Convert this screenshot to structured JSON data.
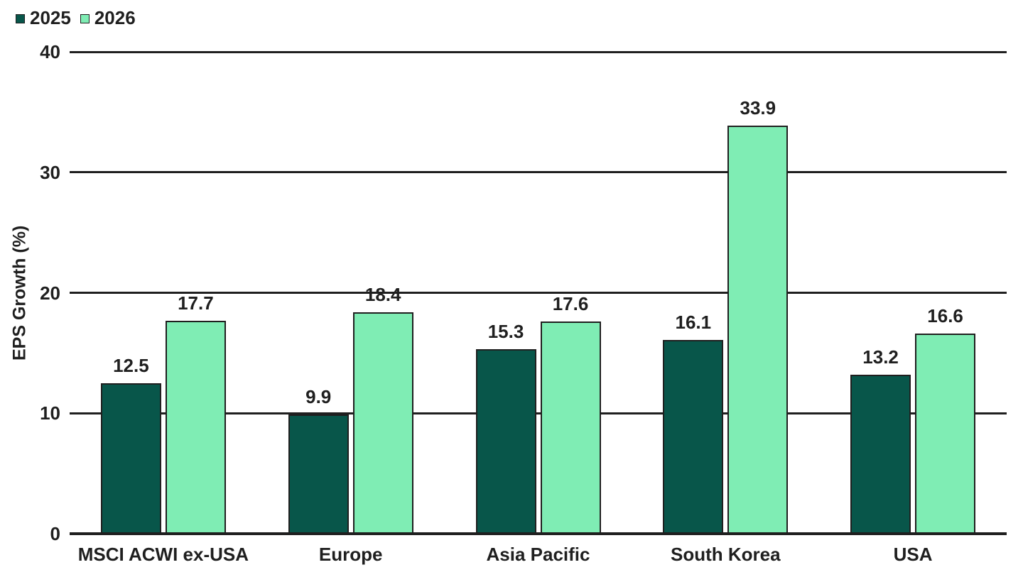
{
  "chart_data": {
    "type": "bar",
    "categories": [
      "MSCI ACWI ex-USA",
      "Europe",
      "Asia Pacific",
      "South Korea",
      "USA"
    ],
    "series": [
      {
        "name": "2025",
        "color": "#08564A",
        "values": [
          12.5,
          9.9,
          15.3,
          16.1,
          13.2
        ]
      },
      {
        "name": "2026",
        "color": "#7FEDB4",
        "values": [
          17.7,
          18.4,
          17.6,
          33.9,
          16.6
        ]
      }
    ],
    "title": "",
    "xlabel": "",
    "ylabel": "EPS Growth (%)",
    "ylim": [
      0,
      40
    ],
    "yticks": [
      0,
      10,
      20,
      30,
      40
    ],
    "grid": "horizontal",
    "legend_position": "top-left",
    "value_labels": true,
    "value_label_decimals": 1,
    "colors": {
      "background": "#FFFFFF",
      "text": "#1F1F1F",
      "gridline": "#1F1F1F",
      "axis": "#1F1F1F",
      "bar_border": "#1F1F1F"
    }
  }
}
